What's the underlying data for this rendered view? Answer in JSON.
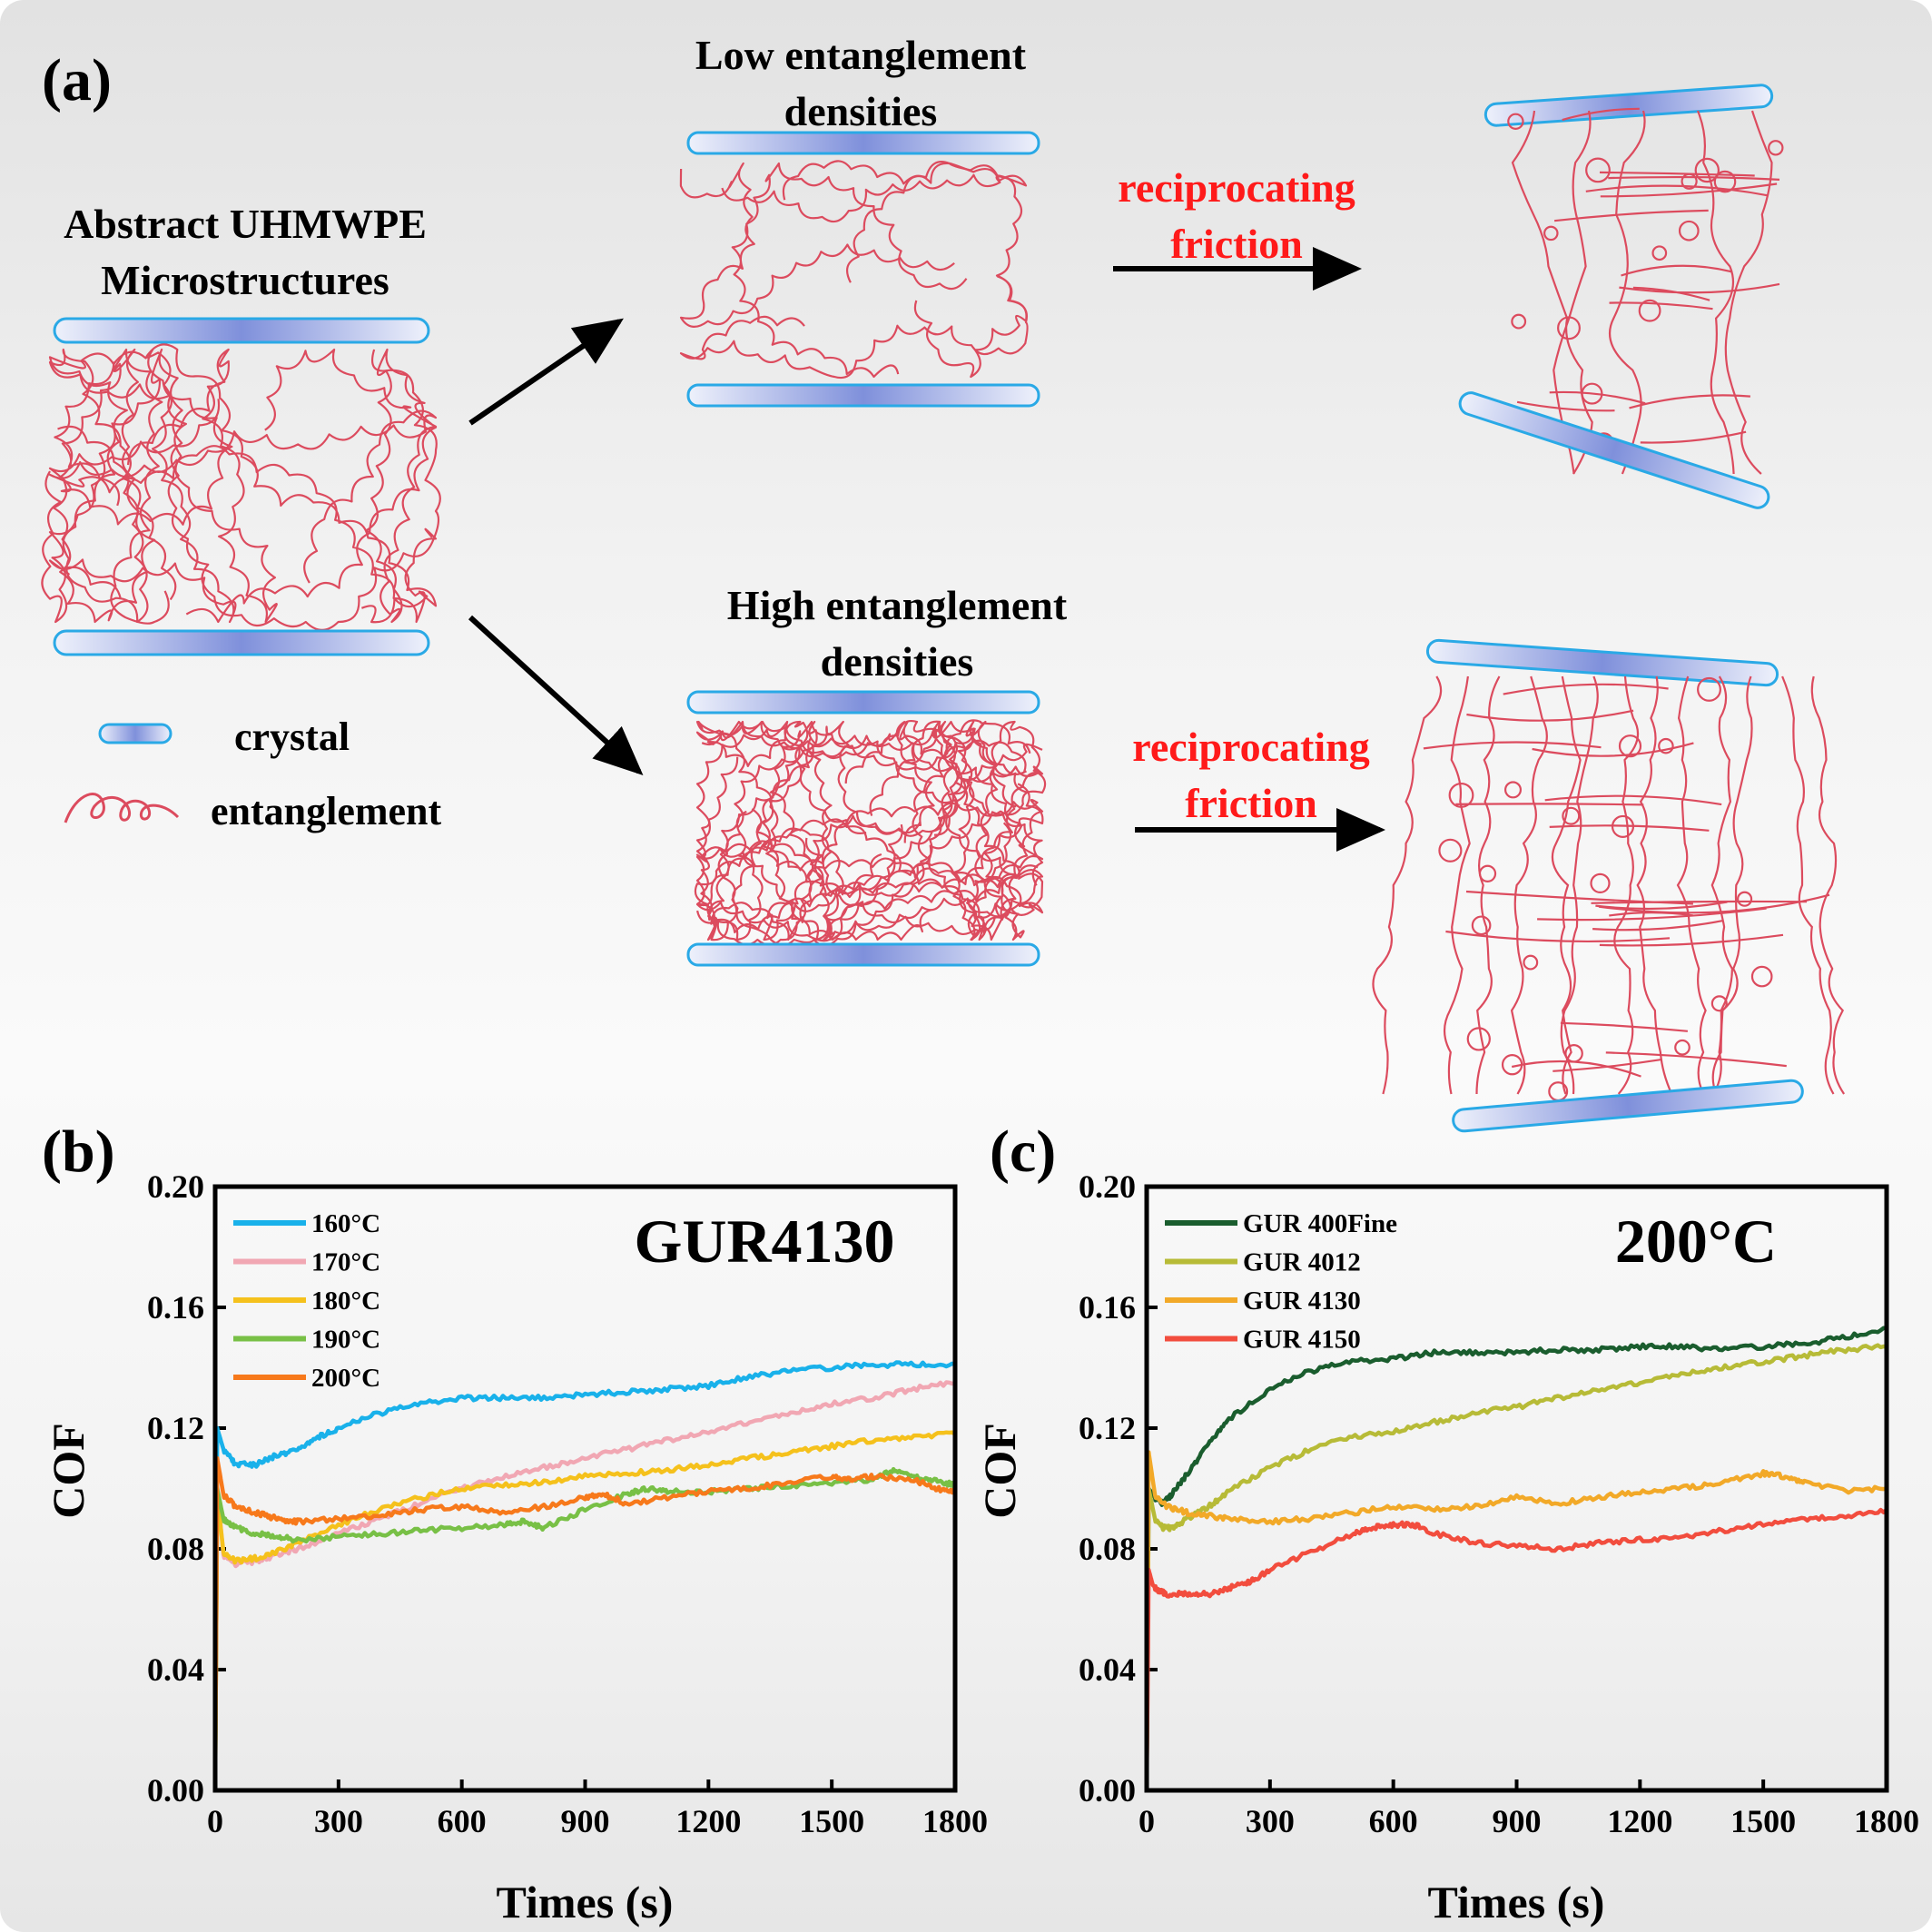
{
  "panel_a": {
    "label": "(a)",
    "source_title": [
      "Abstract UHMWPE",
      "Microstructures"
    ],
    "low_title": [
      "Low entanglement",
      "densities"
    ],
    "high_title": [
      "High entanglement",
      "densities"
    ],
    "process_low": [
      "reciprocating",
      "friction"
    ],
    "process_high": [
      "reciprocating",
      "friction"
    ],
    "legend": {
      "crystal": "crystal",
      "entanglement": "entanglement"
    },
    "colors": {
      "chain": "#dc4b5e",
      "crystal_edge": "#2aa9e6",
      "crystal_fill": "#8795dc",
      "arrow": "#000000",
      "process_text": "#ff1a1a"
    }
  },
  "chart_data": [
    {
      "panel_label": "(b)",
      "type": "line",
      "annotation": "GUR4130",
      "xlabel": "Times (s)",
      "ylabel": "COF",
      "xlim": [
        0,
        1800
      ],
      "ylim": [
        0,
        0.2
      ],
      "xticks": [
        "0",
        "300",
        "600",
        "900",
        "1200",
        "1500",
        "1800"
      ],
      "yticks": [
        "0.00",
        "0.04",
        "0.08",
        "0.12",
        "0.16",
        "0.20"
      ],
      "legend_position": "top-left",
      "grid": false,
      "series": [
        {
          "name": "160°C",
          "color": "#19b1ea",
          "x": [
            0,
            5,
            20,
            50,
            100,
            150,
            200,
            250,
            300,
            400,
            500,
            600,
            700,
            800,
            900,
            1000,
            1100,
            1200,
            1300,
            1400,
            1500,
            1600,
            1700,
            1800
          ],
          "y": [
            0.0,
            0.12,
            0.113,
            0.108,
            0.108,
            0.111,
            0.113,
            0.117,
            0.12,
            0.125,
            0.128,
            0.13,
            0.13,
            0.13,
            0.131,
            0.132,
            0.133,
            0.134,
            0.137,
            0.139,
            0.14,
            0.141,
            0.141,
            0.141
          ]
        },
        {
          "name": "170°C",
          "color": "#f1a7b3",
          "x": [
            0,
            5,
            20,
            50,
            100,
            150,
            200,
            300,
            400,
            500,
            600,
            700,
            800,
            900,
            1000,
            1100,
            1200,
            1300,
            1400,
            1500,
            1600,
            1700,
            1800
          ],
          "y": [
            0.0,
            0.1,
            0.078,
            0.075,
            0.076,
            0.078,
            0.08,
            0.085,
            0.09,
            0.095,
            0.1,
            0.104,
            0.107,
            0.11,
            0.113,
            0.116,
            0.119,
            0.122,
            0.125,
            0.128,
            0.13,
            0.133,
            0.135
          ]
        },
        {
          "name": "180°C",
          "color": "#f5c11c",
          "x": [
            0,
            5,
            20,
            50,
            100,
            150,
            200,
            300,
            400,
            500,
            600,
            700,
            800,
            900,
            1000,
            1100,
            1200,
            1300,
            1400,
            1500,
            1600,
            1700,
            1800
          ],
          "y": [
            0.0,
            0.098,
            0.079,
            0.076,
            0.077,
            0.079,
            0.082,
            0.088,
            0.093,
            0.097,
            0.1,
            0.101,
            0.102,
            0.104,
            0.105,
            0.106,
            0.108,
            0.11,
            0.112,
            0.114,
            0.116,
            0.117,
            0.118
          ]
        },
        {
          "name": "190°C",
          "color": "#78c046",
          "x": [
            0,
            5,
            20,
            50,
            100,
            150,
            200,
            300,
            400,
            500,
            600,
            700,
            750,
            800,
            900,
            1000,
            1050,
            1100,
            1200,
            1300,
            1400,
            1500,
            1600,
            1650,
            1700,
            1750,
            1800
          ],
          "y": [
            0.0,
            0.1,
            0.09,
            0.087,
            0.085,
            0.084,
            0.083,
            0.084,
            0.085,
            0.086,
            0.087,
            0.088,
            0.089,
            0.087,
            0.093,
            0.098,
            0.1,
            0.099,
            0.099,
            0.1,
            0.101,
            0.102,
            0.103,
            0.106,
            0.104,
            0.103,
            0.101
          ]
        },
        {
          "name": "200°C",
          "color": "#f7791b",
          "x": [
            0,
            5,
            20,
            50,
            100,
            150,
            200,
            300,
            400,
            500,
            600,
            700,
            800,
            900,
            950,
            1000,
            1100,
            1200,
            1300,
            1400,
            1500,
            1550,
            1600,
            1700,
            1750,
            1800
          ],
          "y": [
            0.0,
            0.11,
            0.098,
            0.094,
            0.092,
            0.09,
            0.089,
            0.09,
            0.091,
            0.093,
            0.094,
            0.092,
            0.094,
            0.097,
            0.098,
            0.095,
            0.097,
            0.099,
            0.1,
            0.102,
            0.104,
            0.103,
            0.104,
            0.103,
            0.1,
            0.099
          ]
        }
      ]
    },
    {
      "panel_label": "(c)",
      "type": "line",
      "annotation": "200°C",
      "xlabel": "Times (s)",
      "ylabel": "COF",
      "xlim": [
        0,
        1800
      ],
      "ylim": [
        0,
        0.2
      ],
      "xticks": [
        "0",
        "300",
        "600",
        "900",
        "1200",
        "1500",
        "1800"
      ],
      "yticks": [
        "0.00",
        "0.04",
        "0.08",
        "0.12",
        "0.16",
        "0.20"
      ],
      "legend_position": "top-left",
      "grid": false,
      "series": [
        {
          "name": "GUR 400Fine",
          "color": "#1a5d2e",
          "x": [
            0,
            5,
            20,
            40,
            60,
            100,
            150,
            200,
            300,
            400,
            500,
            600,
            700,
            800,
            900,
            1000,
            1100,
            1200,
            1300,
            1400,
            1500,
            1600,
            1700,
            1800
          ],
          "y": [
            0.0,
            0.1,
            0.097,
            0.095,
            0.098,
            0.105,
            0.115,
            0.123,
            0.133,
            0.139,
            0.142,
            0.143,
            0.145,
            0.145,
            0.145,
            0.146,
            0.146,
            0.147,
            0.147,
            0.146,
            0.147,
            0.148,
            0.15,
            0.153
          ]
        },
        {
          "name": "GUR 4012",
          "color": "#b7bb37",
          "x": [
            0,
            5,
            20,
            40,
            60,
            100,
            150,
            200,
            300,
            400,
            500,
            600,
            700,
            800,
            900,
            1000,
            1100,
            1200,
            1300,
            1400,
            1500,
            1600,
            1700,
            1800
          ],
          "y": [
            0.0,
            0.1,
            0.09,
            0.087,
            0.087,
            0.09,
            0.094,
            0.099,
            0.107,
            0.113,
            0.117,
            0.119,
            0.122,
            0.125,
            0.127,
            0.13,
            0.133,
            0.135,
            0.138,
            0.14,
            0.142,
            0.144,
            0.146,
            0.147
          ]
        },
        {
          "name": "GUR 4130",
          "color": "#f2a928",
          "x": [
            0,
            5,
            20,
            50,
            100,
            150,
            200,
            300,
            400,
            500,
            600,
            700,
            800,
            900,
            1000,
            1100,
            1200,
            1300,
            1400,
            1500,
            1550,
            1600,
            1700,
            1800
          ],
          "y": [
            0.0,
            0.112,
            0.098,
            0.094,
            0.092,
            0.091,
            0.09,
            0.089,
            0.09,
            0.092,
            0.094,
            0.093,
            0.094,
            0.097,
            0.095,
            0.097,
            0.099,
            0.1,
            0.102,
            0.105,
            0.104,
            0.102,
            0.099,
            0.1
          ]
        },
        {
          "name": "GUR 4150",
          "color": "#f24d3e",
          "x": [
            0,
            5,
            15,
            30,
            50,
            100,
            150,
            200,
            250,
            300,
            400,
            500,
            550,
            600,
            650,
            700,
            800,
            900,
            1000,
            1100,
            1200,
            1300,
            1400,
            1500,
            1600,
            1700,
            1800
          ],
          "y": [
            0.0,
            0.073,
            0.068,
            0.066,
            0.065,
            0.065,
            0.065,
            0.067,
            0.069,
            0.073,
            0.079,
            0.085,
            0.087,
            0.088,
            0.088,
            0.085,
            0.082,
            0.081,
            0.08,
            0.082,
            0.083,
            0.084,
            0.086,
            0.088,
            0.09,
            0.091,
            0.093
          ]
        }
      ]
    }
  ]
}
